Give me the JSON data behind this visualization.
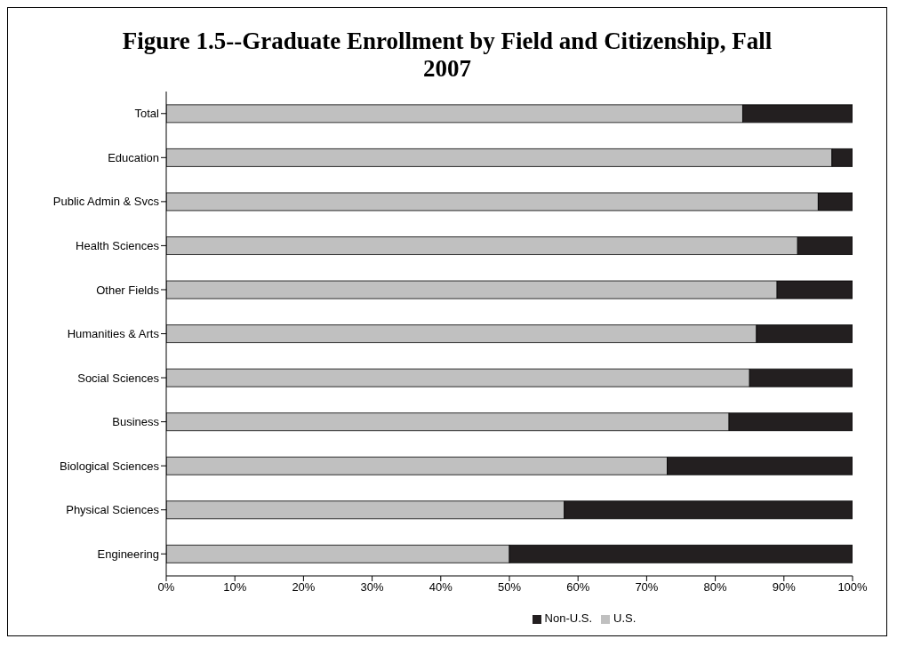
{
  "chart_data": {
    "type": "bar",
    "orientation": "horizontal",
    "stacked": true,
    "title": "Figure 1.5--Graduate Enrollment by Field and Citizenship, Fall 2007",
    "categories": [
      "Total",
      "Education",
      "Public Admin & Svcs",
      "Health Sciences",
      "Other Fields",
      "Humanities & Arts",
      "Social Sciences",
      "Business",
      "Biological Sciences",
      "Physical Sciences",
      "Engineering"
    ],
    "series": [
      {
        "name": "U.S.",
        "color": "#c0c0c0",
        "values": [
          84,
          97,
          95,
          92,
          89,
          86,
          85,
          82,
          73,
          58,
          50
        ]
      },
      {
        "name": "Non-U.S.",
        "color": "#231f20",
        "values": [
          16,
          3,
          5,
          8,
          11,
          14,
          15,
          18,
          27,
          42,
          50
        ]
      }
    ],
    "xlim": [
      0,
      100
    ],
    "xticks": [
      {
        "value": 0,
        "label": "0%"
      },
      {
        "value": 10,
        "label": "10%"
      },
      {
        "value": 20,
        "label": "20%"
      },
      {
        "value": 30,
        "label": "30%"
      },
      {
        "value": 40,
        "label": "40%"
      },
      {
        "value": 50,
        "label": "50%"
      },
      {
        "value": 60,
        "label": "60%"
      },
      {
        "value": 70,
        "label": "70%"
      },
      {
        "value": 80,
        "label": "80%"
      },
      {
        "value": 90,
        "label": "90%"
      },
      {
        "value": 100,
        "label": "100%"
      }
    ],
    "grid": false,
    "legend": "bottom"
  }
}
